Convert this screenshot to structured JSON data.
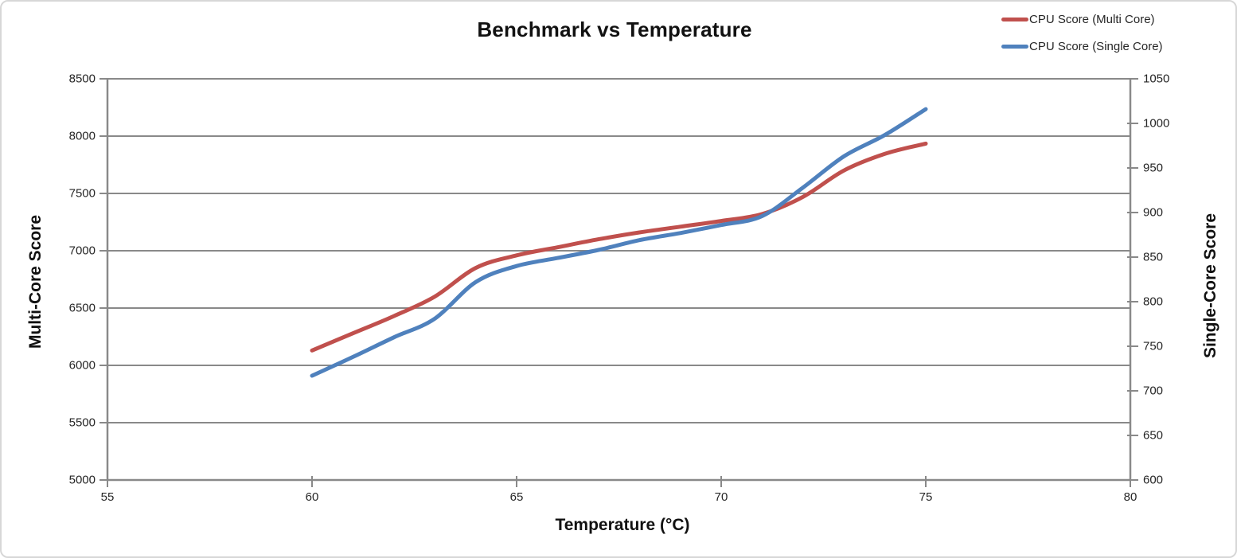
{
  "window": {
    "background": "#ffffff",
    "border_color": "#d7d7d7"
  },
  "colors": {
    "multi_core_line": "#c0504d",
    "single_core_line": "#4f81bd",
    "gridline": "#898989",
    "axis_line": "#898989",
    "text": "#262626",
    "title_text": "#111111"
  },
  "chart_data": {
    "type": "line",
    "title": "Benchmark vs Temperature",
    "xlabel": "Temperature (°C)",
    "ylabel_left": "Multi-Core Score",
    "ylabel_right": "Single-Core Score",
    "grid": "horizontal",
    "legend_position": "top-right",
    "line_style": "smooth",
    "xlim": [
      55,
      80
    ],
    "ylim_left": [
      5000,
      8500
    ],
    "ylim_right": [
      600,
      1050
    ],
    "x_ticks": [
      55,
      60,
      65,
      70,
      75,
      80
    ],
    "left_ticks": [
      5000,
      5500,
      6000,
      6500,
      7000,
      7500,
      8000,
      8500
    ],
    "right_ticks": [
      600,
      650,
      700,
      750,
      800,
      850,
      900,
      950,
      1000,
      1050
    ],
    "x": [
      60,
      61,
      62,
      63,
      64,
      65,
      66,
      67,
      68,
      69,
      70,
      71,
      72,
      73,
      74,
      75
    ],
    "series": [
      {
        "name": "CPU Score (Multi Core)",
        "axis": "left",
        "color": "#c0504d",
        "values": [
          6130,
          6280,
          6430,
          6600,
          6850,
          6960,
          7030,
          7100,
          7160,
          7210,
          7260,
          7320,
          7470,
          7700,
          7845,
          7935
        ]
      },
      {
        "name": "CPU Score (Single Core)",
        "axis": "right",
        "color": "#4f81bd",
        "values": [
          717,
          738,
          760,
          781,
          822,
          840,
          849,
          858,
          869,
          877,
          886,
          896,
          928,
          963,
          987,
          1016
        ]
      }
    ]
  }
}
